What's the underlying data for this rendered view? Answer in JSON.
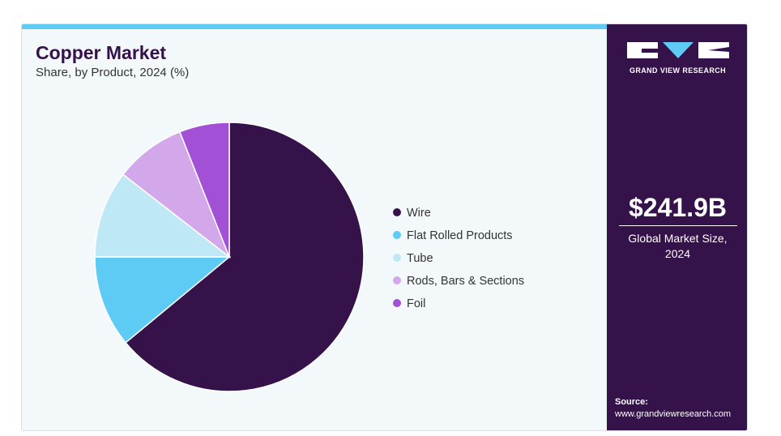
{
  "header": {
    "title": "Copper Market",
    "subtitle": "Share, by Product, 2024 (%)"
  },
  "sidebar": {
    "brand": "GRAND VIEW RESEARCH",
    "market_size": "$241.9B",
    "market_size_caption": "Global Market Size, 2024",
    "source_label": "Source:",
    "source_url": "www.grandviewresearch.com",
    "background_color": "#35124a"
  },
  "chart_data": {
    "type": "pie",
    "title": "Copper Market",
    "subtitle": "Share, by Product, 2024 (%)",
    "legend_position": "right",
    "slices": [
      {
        "label": "Wire",
        "value": 64,
        "color": "#35124a"
      },
      {
        "label": "Flat Rolled Products",
        "value": 11,
        "color": "#5ecbf5"
      },
      {
        "label": "Tube",
        "value": 10.5,
        "color": "#bfe8f7"
      },
      {
        "label": "Rods, Bars & Sections",
        "value": 8.5,
        "color": "#d3a8ea"
      },
      {
        "label": "Foil",
        "value": 6,
        "color": "#a250d5"
      }
    ]
  },
  "colors": {
    "accent_bar": "#5ecbf5",
    "card_background": "#f3f8fb"
  }
}
